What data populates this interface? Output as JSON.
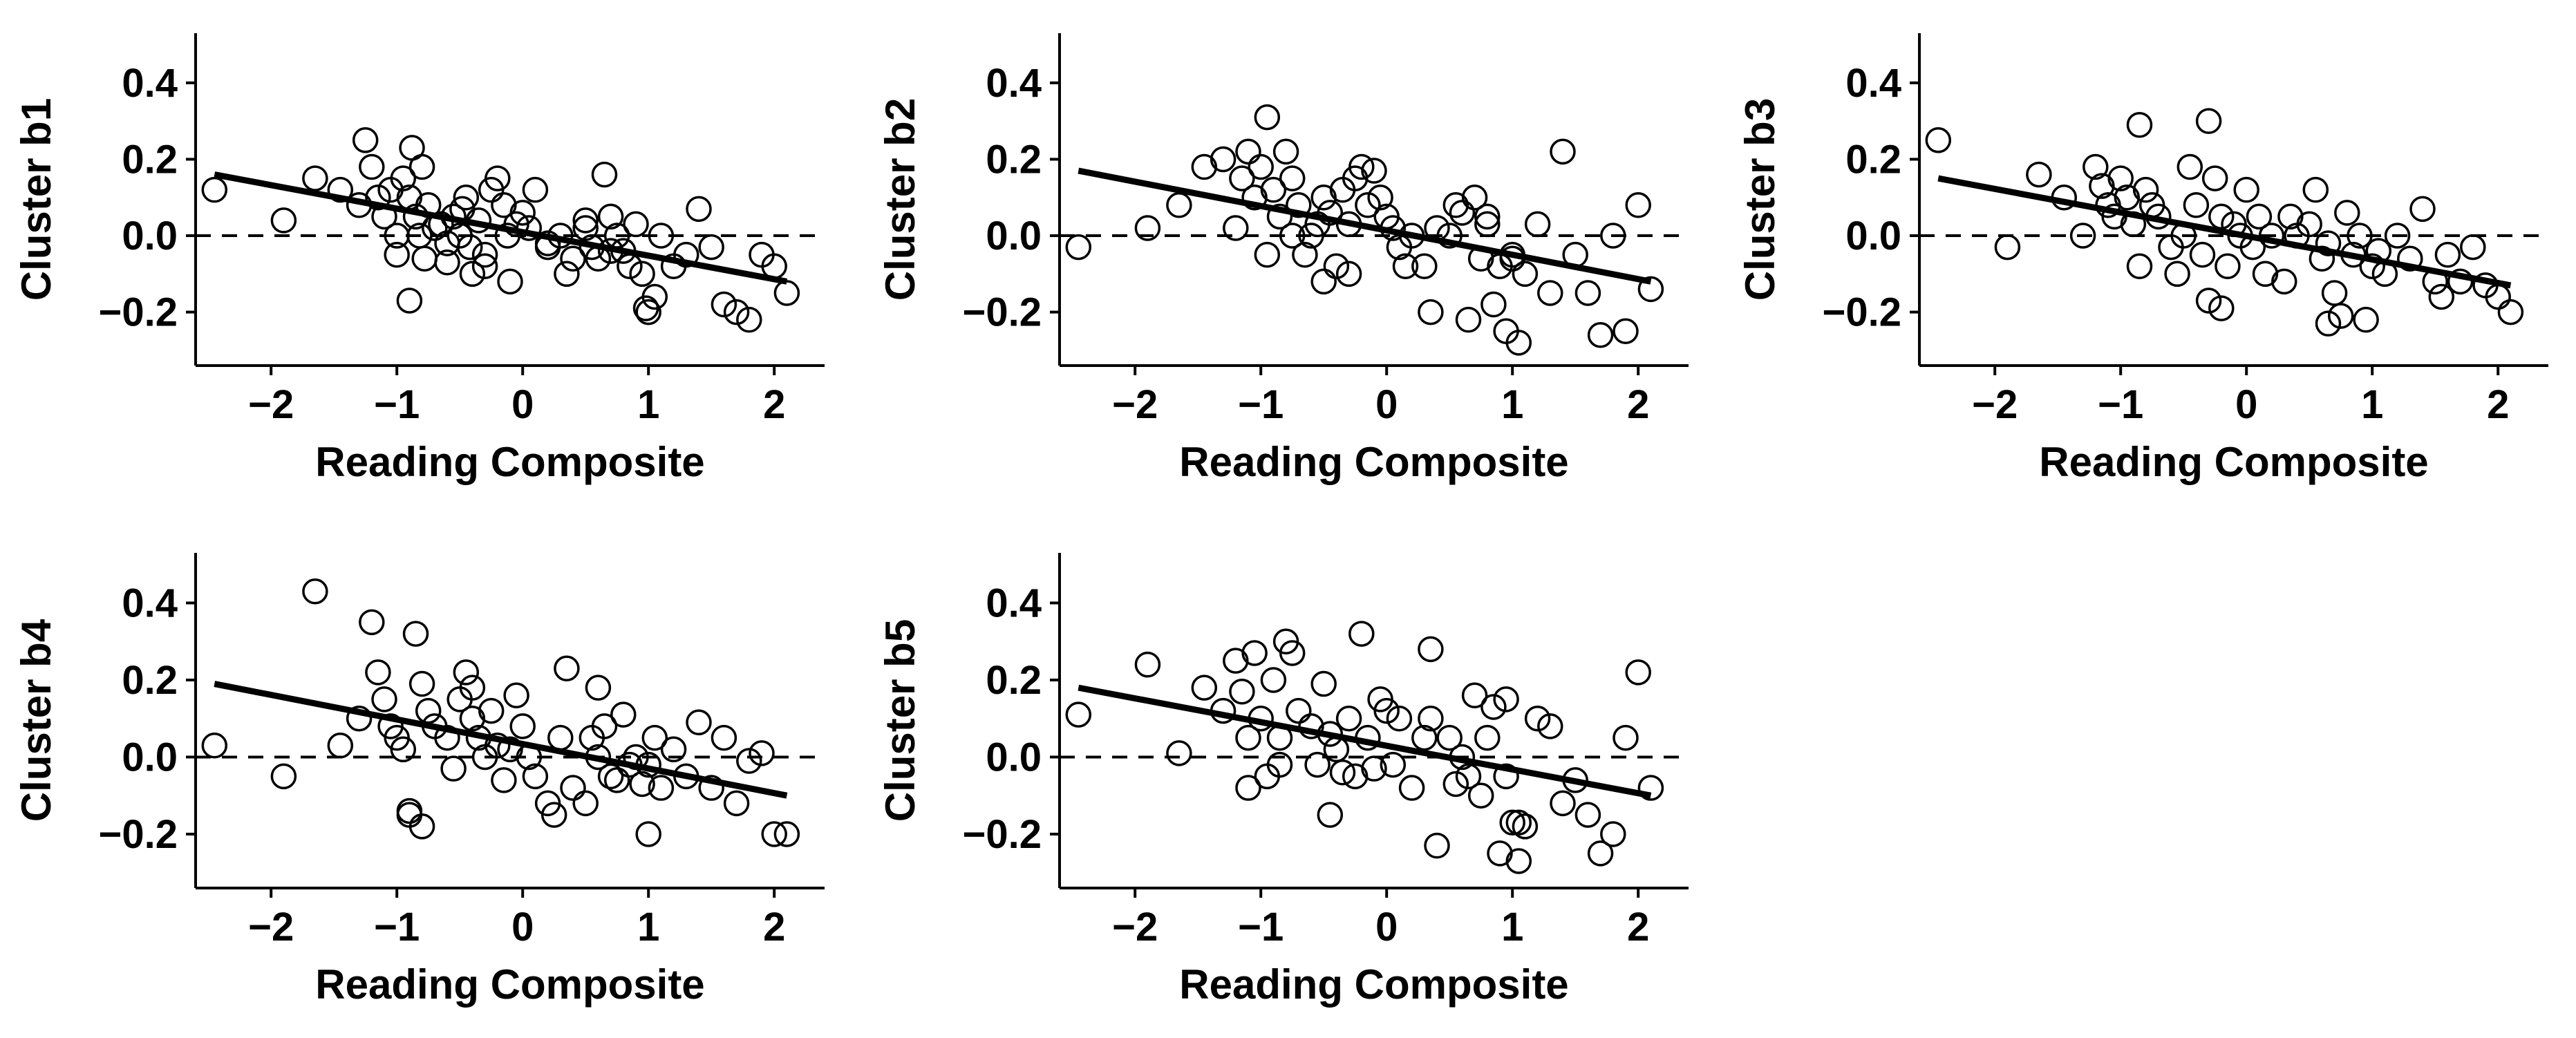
{
  "figure": {
    "background": "#ffffff",
    "ink_color": "#000000",
    "marker": "open-circle",
    "reference_line": "dashed horizontal at y = 0"
  },
  "chart_data": [
    {
      "type": "scatter",
      "xlabel": "Reading Composite",
      "ylabel": "Cluster b1",
      "xlim": [
        -2.6,
        2.4
      ],
      "ylim": [
        -0.34,
        0.53
      ],
      "xticks": [
        -2,
        -1,
        0,
        1,
        2
      ],
      "xtick_labels": [
        "−2",
        "−1",
        "0",
        "1",
        "2"
      ],
      "yticks": [
        -0.2,
        0.0,
        0.2,
        0.4
      ],
      "ytick_labels": [
        "−0.2",
        "0.0",
        "0.2",
        "0.4"
      ],
      "grid": false,
      "legend": "none",
      "fit_line": {
        "x": [
          -2.45,
          2.1
        ],
        "y": [
          0.16,
          -0.12
        ]
      },
      "hline": 0,
      "x": [
        -2.45,
        -1.9,
        -1.65,
        -1.45,
        -1.3,
        -1.25,
        -1.2,
        -1.15,
        -1.1,
        -1.05,
        -1.0,
        -0.95,
        -0.9,
        -0.88,
        -0.85,
        -0.82,
        -0.8,
        -0.78,
        -0.75,
        -0.7,
        -0.65,
        -0.6,
        -0.55,
        -0.5,
        -0.48,
        -0.45,
        -0.42,
        -0.4,
        -0.35,
        -0.3,
        -0.25,
        -0.2,
        -0.15,
        -0.12,
        -0.1,
        -0.05,
        0.0,
        0.05,
        0.1,
        0.2,
        0.3,
        0.35,
        0.4,
        0.5,
        0.55,
        0.6,
        0.65,
        0.7,
        0.75,
        0.8,
        0.85,
        0.9,
        0.95,
        0.98,
        1.0,
        1.05,
        1.1,
        1.2,
        1.3,
        1.4,
        1.5,
        1.6,
        1.7,
        1.8,
        1.9,
        2.0,
        2.1,
        -0.9,
        -1.0,
        -0.3,
        0.2,
        0.7,
        -0.6,
        0.5
      ],
      "y": [
        0.12,
        0.04,
        0.15,
        0.12,
        0.08,
        0.25,
        0.18,
        0.1,
        0.05,
        0.12,
        -0.05,
        0.15,
        -0.17,
        0.23,
        0.05,
        0.0,
        0.18,
        -0.06,
        0.08,
        0.02,
        0.03,
        -0.02,
        0.05,
        0.0,
        0.07,
        0.1,
        -0.03,
        -0.1,
        0.04,
        -0.05,
        0.12,
        0.15,
        0.08,
        0.0,
        -0.12,
        0.03,
        0.06,
        0.02,
        0.12,
        -0.03,
        0.0,
        -0.1,
        -0.06,
        0.02,
        -0.03,
        -0.06,
        0.16,
        0.05,
        0.0,
        -0.04,
        -0.08,
        0.03,
        -0.1,
        -0.19,
        -0.2,
        -0.16,
        0.0,
        -0.08,
        -0.05,
        0.07,
        -0.03,
        -0.18,
        -0.2,
        -0.22,
        -0.05,
        -0.08,
        -0.15,
        0.1,
        0.0,
        -0.08,
        -0.02,
        -0.04,
        -0.07,
        0.04
      ]
    },
    {
      "type": "scatter",
      "xlabel": "Reading Composite",
      "ylabel": "Cluster b2",
      "xlim": [
        -2.6,
        2.4
      ],
      "ylim": [
        -0.34,
        0.53
      ],
      "xticks": [
        -2,
        -1,
        0,
        1,
        2
      ],
      "xtick_labels": [
        "−2",
        "−1",
        "0",
        "1",
        "2"
      ],
      "yticks": [
        -0.2,
        0.0,
        0.2,
        0.4
      ],
      "ytick_labels": [
        "−0.2",
        "0.0",
        "0.2",
        "0.4"
      ],
      "grid": false,
      "legend": "none",
      "fit_line": {
        "x": [
          -2.45,
          2.1
        ],
        "y": [
          0.17,
          -0.12
        ]
      },
      "hline": 0,
      "x": [
        -2.45,
        -1.9,
        -1.65,
        -1.45,
        -1.3,
        -1.2,
        -1.15,
        -1.1,
        -1.05,
        -1.0,
        -0.95,
        -0.9,
        -0.85,
        -0.8,
        -0.75,
        -0.7,
        -0.65,
        -0.6,
        -0.55,
        -0.5,
        -0.45,
        -0.4,
        -0.35,
        -0.3,
        -0.25,
        -0.2,
        -0.15,
        -0.1,
        -0.05,
        0.0,
        0.05,
        0.1,
        0.2,
        0.3,
        0.35,
        0.4,
        0.5,
        0.55,
        0.6,
        0.65,
        0.7,
        0.75,
        0.8,
        0.85,
        0.9,
        0.95,
        1.0,
        1.05,
        1.1,
        1.2,
        1.3,
        1.4,
        1.5,
        1.6,
        1.7,
        1.8,
        1.9,
        2.0,
        2.1,
        -0.95,
        -0.75,
        -0.5,
        -0.3,
        0.15,
        0.8,
        1.0
      ],
      "y": [
        -0.03,
        0.02,
        0.08,
        0.18,
        0.2,
        0.02,
        0.15,
        0.22,
        0.1,
        0.18,
        0.31,
        0.12,
        0.05,
        0.22,
        0.15,
        0.08,
        -0.05,
        0.0,
        0.03,
        0.1,
        0.06,
        -0.08,
        0.12,
        -0.1,
        0.15,
        0.18,
        0.08,
        0.17,
        0.1,
        0.05,
        0.02,
        -0.03,
        0.0,
        -0.08,
        -0.2,
        0.02,
        0.0,
        0.08,
        0.06,
        -0.22,
        0.1,
        -0.06,
        0.03,
        -0.18,
        -0.08,
        -0.25,
        -0.05,
        -0.28,
        -0.1,
        0.03,
        -0.15,
        0.22,
        -0.05,
        -0.15,
        -0.26,
        0.0,
        -0.25,
        0.08,
        -0.14,
        -0.05,
        0.0,
        -0.12,
        0.03,
        -0.08,
        0.05,
        -0.06
      ]
    },
    {
      "type": "scatter",
      "xlabel": "Reading Composite",
      "ylabel": "Cluster b3",
      "xlim": [
        -2.6,
        2.4
      ],
      "ylim": [
        -0.34,
        0.53
      ],
      "xticks": [
        -2,
        -1,
        0,
        1,
        2
      ],
      "xtick_labels": [
        "−2",
        "−1",
        "0",
        "1",
        "2"
      ],
      "yticks": [
        -0.2,
        0.0,
        0.2,
        0.4
      ],
      "ytick_labels": [
        "−0.2",
        "0.0",
        "0.2",
        "0.4"
      ],
      "grid": false,
      "legend": "none",
      "fit_line": {
        "x": [
          -2.45,
          2.1
        ],
        "y": [
          0.15,
          -0.13
        ]
      },
      "hline": 0,
      "x": [
        -2.45,
        -1.9,
        -1.65,
        -1.45,
        -1.3,
        -1.2,
        -1.15,
        -1.1,
        -1.05,
        -1.0,
        -0.95,
        -0.9,
        -0.85,
        -0.8,
        -0.75,
        -0.7,
        -0.6,
        -0.55,
        -0.5,
        -0.45,
        -0.4,
        -0.35,
        -0.3,
        -0.25,
        -0.2,
        -0.15,
        -0.1,
        -0.05,
        0.0,
        0.05,
        0.1,
        0.2,
        0.3,
        0.35,
        0.4,
        0.5,
        0.55,
        0.6,
        0.65,
        0.7,
        0.75,
        0.8,
        0.85,
        0.9,
        0.95,
        1.0,
        1.05,
        1.1,
        1.2,
        1.3,
        1.4,
        1.5,
        1.6,
        1.7,
        1.8,
        1.9,
        2.0,
        2.1,
        -0.85,
        -0.3,
        -0.2,
        0.15,
        0.65,
        1.55
      ],
      "y": [
        0.25,
        -0.03,
        0.16,
        0.1,
        0.0,
        0.18,
        0.13,
        0.08,
        0.05,
        0.15,
        0.1,
        0.03,
        0.29,
        0.12,
        0.08,
        0.05,
        -0.03,
        -0.1,
        0.0,
        0.18,
        0.08,
        -0.05,
        0.3,
        0.15,
        0.05,
        -0.08,
        0.03,
        0.0,
        0.12,
        -0.03,
        0.05,
        0.0,
        -0.12,
        0.05,
        0.0,
        0.03,
        0.12,
        -0.06,
        -0.02,
        -0.15,
        -0.21,
        0.06,
        -0.05,
        0.0,
        -0.22,
        -0.08,
        -0.04,
        -0.1,
        0.0,
        -0.06,
        0.07,
        -0.12,
        -0.05,
        -0.12,
        -0.03,
        -0.13,
        -0.16,
        -0.2,
        -0.08,
        -0.17,
        -0.19,
        -0.1,
        -0.23,
        -0.16
      ]
    },
    {
      "type": "scatter",
      "xlabel": "Reading Composite",
      "ylabel": "Cluster b4",
      "xlim": [
        -2.6,
        2.4
      ],
      "ylim": [
        -0.34,
        0.53
      ],
      "xticks": [
        -2,
        -1,
        0,
        1,
        2
      ],
      "xtick_labels": [
        "−2",
        "−1",
        "0",
        "1",
        "2"
      ],
      "yticks": [
        -0.2,
        0.0,
        0.2,
        0.4
      ],
      "ytick_labels": [
        "−0.2",
        "0.0",
        "0.2",
        "0.4"
      ],
      "grid": false,
      "legend": "none",
      "fit_line": {
        "x": [
          -2.45,
          2.1
        ],
        "y": [
          0.19,
          -0.1
        ]
      },
      "hline": 0,
      "x": [
        -2.45,
        -1.9,
        -1.65,
        -1.45,
        -1.3,
        -1.2,
        -1.15,
        -1.1,
        -1.05,
        -1.0,
        -0.95,
        -0.9,
        -0.85,
        -0.8,
        -0.75,
        -0.7,
        -0.6,
        -0.55,
        -0.5,
        -0.45,
        -0.4,
        -0.35,
        -0.3,
        -0.25,
        -0.2,
        -0.15,
        -0.1,
        -0.05,
        0.0,
        0.05,
        0.1,
        0.2,
        0.3,
        0.35,
        0.4,
        0.5,
        0.55,
        0.6,
        0.65,
        0.7,
        0.75,
        0.8,
        0.85,
        0.9,
        0.95,
        1.0,
        1.05,
        1.1,
        1.2,
        1.3,
        1.4,
        1.5,
        1.6,
        1.7,
        1.8,
        1.9,
        2.0,
        2.1,
        -0.9,
        -0.8,
        -0.4,
        0.25,
        0.6,
        1.0
      ],
      "y": [
        0.03,
        -0.05,
        0.43,
        0.03,
        0.1,
        0.35,
        0.22,
        0.15,
        0.08,
        0.05,
        0.02,
        -0.15,
        0.32,
        0.19,
        0.12,
        0.08,
        0.05,
        -0.03,
        0.15,
        0.22,
        0.1,
        0.05,
        0.0,
        0.12,
        0.03,
        -0.06,
        0.02,
        0.16,
        0.08,
        0.0,
        -0.05,
        -0.12,
        0.05,
        0.23,
        -0.08,
        -0.12,
        0.05,
        0.18,
        0.08,
        -0.05,
        -0.06,
        0.11,
        -0.02,
        0.0,
        -0.07,
        -0.2,
        0.05,
        -0.08,
        0.02,
        -0.05,
        0.09,
        -0.08,
        0.05,
        -0.12,
        -0.01,
        0.01,
        -0.2,
        -0.2,
        -0.14,
        -0.18,
        0.18,
        -0.15,
        0.0,
        -0.02
      ]
    },
    {
      "type": "scatter",
      "xlabel": "Reading Composite",
      "ylabel": "Cluster b5",
      "xlim": [
        -2.6,
        2.4
      ],
      "ylim": [
        -0.34,
        0.53
      ],
      "xticks": [
        -2,
        -1,
        0,
        1,
        2
      ],
      "xtick_labels": [
        "−2",
        "−1",
        "0",
        "1",
        "2"
      ],
      "yticks": [
        -0.2,
        0.0,
        0.2,
        0.4
      ],
      "ytick_labels": [
        "−0.2",
        "0.0",
        "0.2",
        "0.4"
      ],
      "grid": false,
      "legend": "none",
      "fit_line": {
        "x": [
          -2.45,
          2.1
        ],
        "y": [
          0.18,
          -0.1
        ]
      },
      "hline": 0,
      "x": [
        -2.45,
        -1.9,
        -1.65,
        -1.45,
        -1.3,
        -1.2,
        -1.15,
        -1.1,
        -1.05,
        -1.0,
        -0.95,
        -0.9,
        -0.85,
        -0.8,
        -0.75,
        -0.7,
        -0.6,
        -0.55,
        -0.5,
        -0.45,
        -0.4,
        -0.35,
        -0.3,
        -0.25,
        -0.2,
        -0.15,
        -0.1,
        -0.05,
        0.0,
        0.05,
        0.1,
        0.2,
        0.3,
        0.35,
        0.4,
        0.5,
        0.55,
        0.6,
        0.65,
        0.7,
        0.75,
        0.8,
        0.85,
        0.9,
        0.95,
        1.0,
        1.05,
        1.1,
        1.2,
        1.3,
        1.4,
        1.5,
        1.6,
        1.7,
        1.8,
        1.9,
        2.0,
        2.1,
        -1.1,
        -0.85,
        -0.45,
        0.35,
        0.95,
        1.05
      ],
      "y": [
        0.11,
        0.24,
        0.01,
        0.18,
        0.12,
        0.25,
        0.17,
        -0.08,
        0.27,
        0.1,
        -0.05,
        0.2,
        0.05,
        0.3,
        0.27,
        0.12,
        0.08,
        -0.02,
        0.19,
        0.06,
        0.02,
        -0.04,
        0.1,
        -0.05,
        0.32,
        0.05,
        -0.03,
        0.15,
        0.12,
        -0.02,
        0.1,
        -0.08,
        0.05,
        0.28,
        -0.23,
        0.05,
        -0.07,
        0.0,
        -0.05,
        0.16,
        -0.1,
        0.05,
        0.13,
        -0.25,
        0.15,
        -0.17,
        -0.27,
        -0.18,
        0.1,
        0.08,
        -0.12,
        -0.06,
        -0.15,
        -0.25,
        -0.2,
        0.05,
        0.22,
        -0.08,
        0.05,
        -0.02,
        -0.15,
        0.1,
        -0.05,
        -0.17
      ]
    }
  ]
}
